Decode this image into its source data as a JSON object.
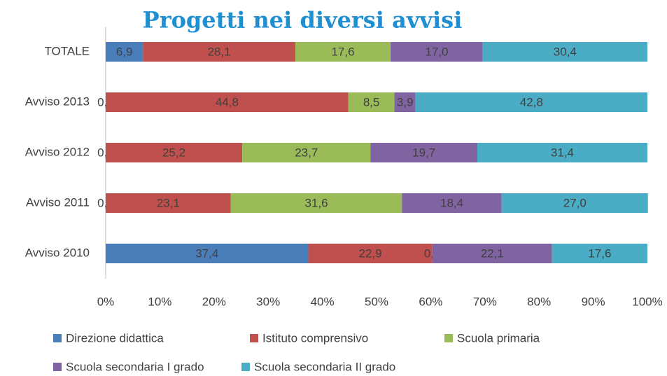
{
  "chart_data": {
    "type": "bar",
    "orientation": "horizontal",
    "stacked": true,
    "title": "Progetti nei diversi avvisi",
    "categories": [
      "TOTALE",
      "Avviso 2013",
      "Avviso 2012",
      "Avviso 2011",
      "Avviso 2010"
    ],
    "series": [
      {
        "name": "Direzione didattica",
        "color": "#4a7ebb",
        "values": [
          6.9,
          0.0,
          0.0,
          0.0,
          37.4
        ],
        "value_labels": [
          "6,9",
          "0,0",
          "0,0",
          "0,0",
          "37,4"
        ]
      },
      {
        "name": "Istituto comprensivo",
        "color": "#c0504d",
        "values": [
          28.1,
          44.8,
          25.2,
          23.1,
          22.9
        ],
        "value_labels": [
          "28,1",
          "44,8",
          "25,2",
          "23,1",
          "22,9"
        ]
      },
      {
        "name": "Scuola primaria",
        "color": "#9bbb59",
        "values": [
          17.6,
          8.5,
          23.7,
          31.6,
          0.0
        ],
        "value_labels": [
          "17,6",
          "8,5",
          "23,7",
          "31,6",
          "0,0"
        ]
      },
      {
        "name": "Scuola secondaria I grado",
        "color": "#8064a2",
        "values": [
          17.0,
          3.9,
          19.7,
          18.4,
          22.1
        ],
        "value_labels": [
          "17,0",
          "3,9",
          "19,7",
          "18,4",
          "22,1"
        ]
      },
      {
        "name": "Scuola secondaria II grado",
        "color": "#4bacc6",
        "values": [
          30.4,
          42.8,
          31.4,
          27.0,
          17.6
        ],
        "value_labels": [
          "30,4",
          "42,8",
          "31,4",
          "27,0",
          "17,6"
        ]
      }
    ],
    "xlim": [
      0,
      100
    ],
    "xticks": [
      {
        "value": 0,
        "label": "0%"
      },
      {
        "value": 10,
        "label": "10%"
      },
      {
        "value": 20,
        "label": "20%"
      },
      {
        "value": 30,
        "label": "30%"
      },
      {
        "value": 40,
        "label": "40%"
      },
      {
        "value": 50,
        "label": "50%"
      },
      {
        "value": 60,
        "label": "60%"
      },
      {
        "value": 70,
        "label": "70%"
      },
      {
        "value": 80,
        "label": "80%"
      },
      {
        "value": 90,
        "label": "90%"
      },
      {
        "value": 100,
        "label": "100%"
      }
    ],
    "grid": false,
    "legend": "bottom"
  }
}
